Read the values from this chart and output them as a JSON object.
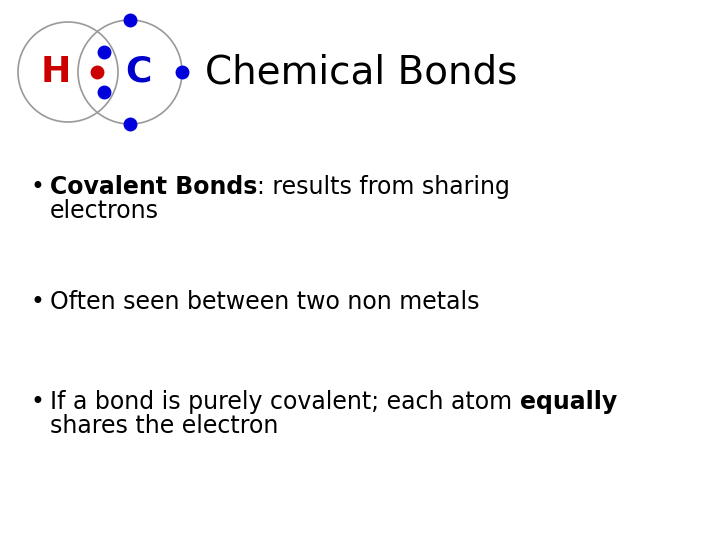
{
  "title": "Chemical Bonds",
  "background_color": "#ffffff",
  "title_fontsize": 28,
  "title_color": "#000000",
  "H_label": "H",
  "C_label": "C",
  "H_color": "#cc0000",
  "C_color": "#0000cc",
  "bullet_fontsize": 17,
  "circle_color": "#999999",
  "electron_color": "#0000dd",
  "nucleus_H_color": "#cc0000"
}
